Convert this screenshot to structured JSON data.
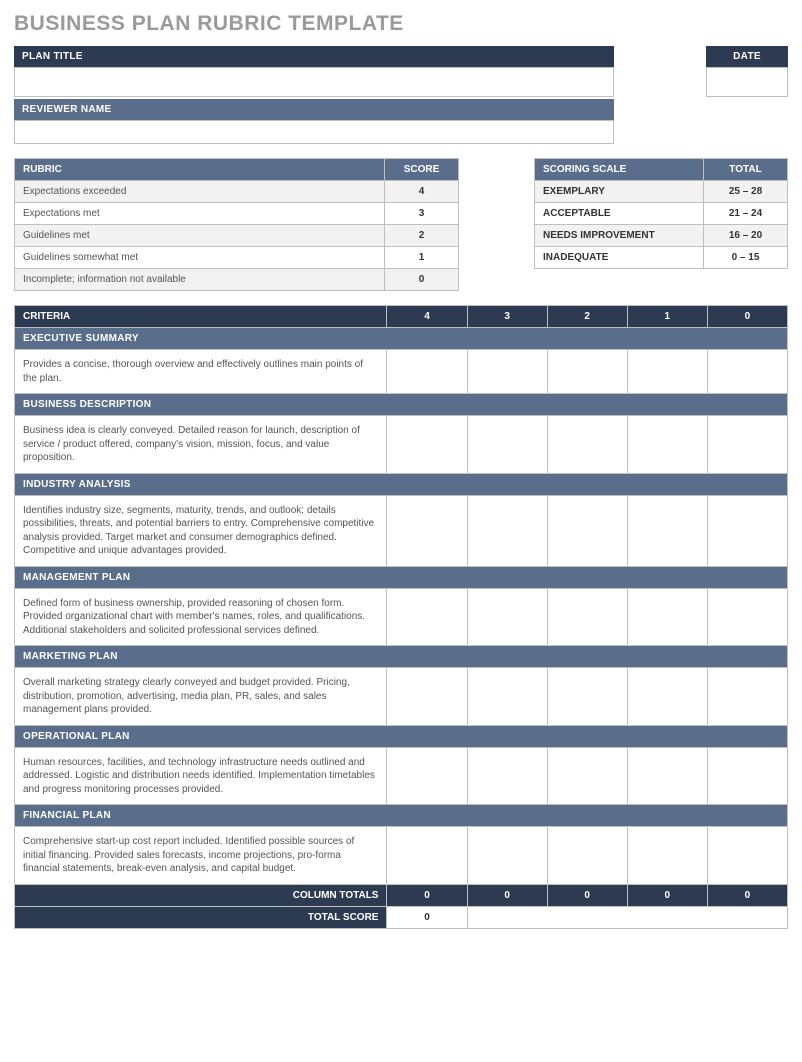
{
  "title": "BUSINESS PLAN RUBRIC TEMPLATE",
  "colors": {
    "dark_header": "#2d3b52",
    "blue_header": "#5a6e8c",
    "alt_row": "#f2f2f2",
    "border": "#bfbfbf",
    "title_text": "#9a9a9a",
    "body_text": "#555555"
  },
  "header": {
    "plan_title_label": "PLAN TITLE",
    "date_label": "DATE",
    "reviewer_label": "REVIEWER NAME"
  },
  "rubric": {
    "header_label": "RUBRIC",
    "score_label": "SCORE",
    "rows": [
      {
        "label": "Expectations exceeded",
        "score": "4"
      },
      {
        "label": "Expectations met",
        "score": "3"
      },
      {
        "label": "Guidelines met",
        "score": "2"
      },
      {
        "label": "Guidelines somewhat met",
        "score": "1"
      },
      {
        "label": "Incomplete; information not available",
        "score": "0"
      }
    ]
  },
  "scoring": {
    "header_label": "SCORING SCALE",
    "total_label": "TOTAL",
    "rows": [
      {
        "label": "EXEMPLARY",
        "range": "25 – 28"
      },
      {
        "label": "ACCEPTABLE",
        "range": "21 – 24"
      },
      {
        "label": "NEEDS IMPROVEMENT",
        "range": "16 – 20"
      },
      {
        "label": "INADEQUATE",
        "range": "0 – 15"
      }
    ]
  },
  "criteria": {
    "header_label": "CRITERIA",
    "score_columns": [
      "4",
      "3",
      "2",
      "1",
      "0"
    ],
    "sections": [
      {
        "title": "EXECUTIVE SUMMARY",
        "description": "Provides a concise, thorough overview and effectively outlines main points of the plan."
      },
      {
        "title": "BUSINESS DESCRIPTION",
        "description": "Business idea is clearly conveyed. Detailed reason for launch, description of service / product offered, company's vision, mission, focus, and value proposition."
      },
      {
        "title": "INDUSTRY ANALYSIS",
        "description": "Identifies industry size, segments, maturity, trends, and outlook; details possibilities, threats, and potential barriers to entry. Comprehensive competitive analysis provided. Target market and consumer demographics defined. Competitive and unique advantages provided."
      },
      {
        "title": "MANAGEMENT PLAN",
        "description": "Defined form of business ownership, provided reasoning of chosen form. Provided organizational chart with member's names, roles, and qualifications.  Additional stakeholders and solicited professional services defined."
      },
      {
        "title": "MARKETING PLAN",
        "description": "Overall marketing strategy clearly conveyed and budget provided. Pricing, distribution, promotion, advertising, media plan, PR, sales, and sales management plans provided."
      },
      {
        "title": "OPERATIONAL PLAN",
        "description": "Human resources, facilities, and technology infrastructure needs outlined and addressed. Logistic and distribution needs identified.  Implementation timetables and progress monitoring processes provided."
      },
      {
        "title": "FINANCIAL PLAN",
        "description": "Comprehensive start-up cost report included. Identified possible sources of initial financing.  Provided sales forecasts, income projections, pro-forma financial statements, break-even analysis, and capital budget."
      }
    ],
    "column_totals_label": "COLUMN TOTALS",
    "column_totals": [
      "0",
      "0",
      "0",
      "0",
      "0"
    ],
    "total_score_label": "TOTAL SCORE",
    "total_score": "0"
  }
}
